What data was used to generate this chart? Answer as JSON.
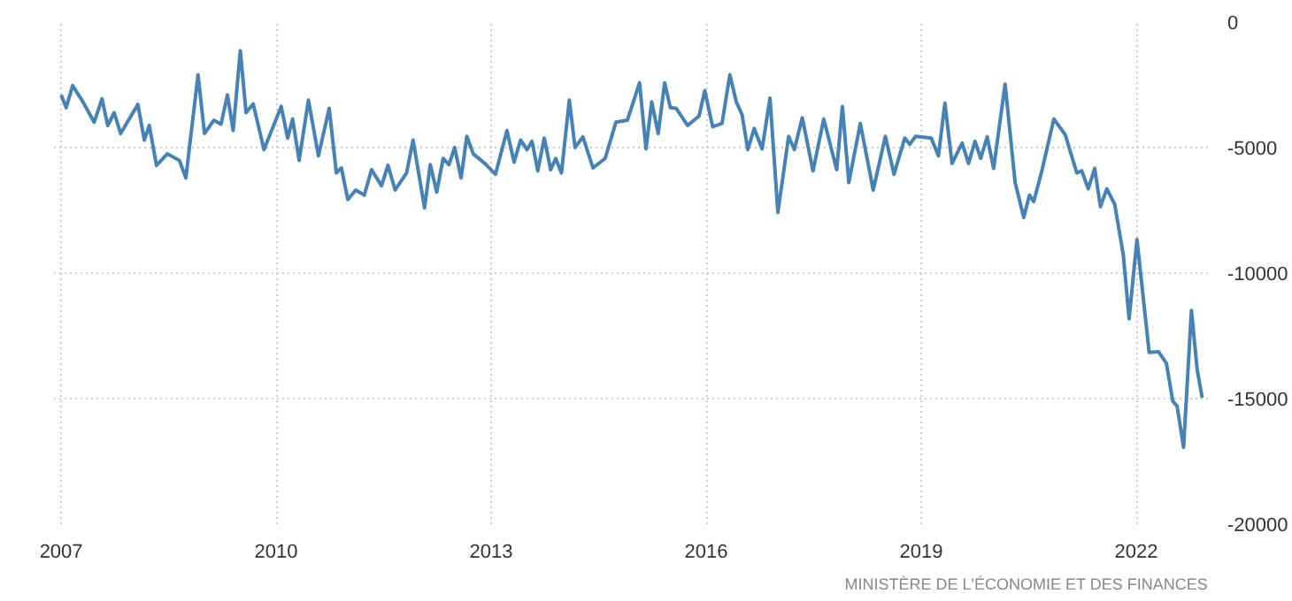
{
  "chart_data": {
    "type": "line",
    "x": [
      2007.0,
      2007.07,
      2007.16,
      2007.29,
      2007.46,
      2007.57,
      2007.65,
      2007.74,
      2007.83,
      2008.07,
      2008.16,
      2008.23,
      2008.33,
      2008.48,
      2008.65,
      2008.74,
      2008.91,
      2009.0,
      2009.13,
      2009.23,
      2009.32,
      2009.4,
      2009.5,
      2009.58,
      2009.68,
      2009.83,
      2010.07,
      2010.16,
      2010.23,
      2010.32,
      2010.45,
      2010.59,
      2010.74,
      2010.84,
      2010.91,
      2011.0,
      2011.11,
      2011.23,
      2011.33,
      2011.47,
      2011.56,
      2011.66,
      2011.82,
      2011.91,
      2012.07,
      2012.15,
      2012.24,
      2012.33,
      2012.41,
      2012.49,
      2012.58,
      2012.66,
      2012.75,
      2012.91,
      2013.06,
      2013.22,
      2013.32,
      2013.41,
      2013.5,
      2013.57,
      2013.65,
      2013.74,
      2013.83,
      2013.9,
      2013.98,
      2014.09,
      2014.17,
      2014.28,
      2014.42,
      2014.59,
      2014.74,
      2014.9,
      2015.07,
      2015.16,
      2015.24,
      2015.33,
      2015.42,
      2015.5,
      2015.58,
      2015.74,
      2015.9,
      2015.98,
      2016.09,
      2016.22,
      2016.33,
      2016.42,
      2016.5,
      2016.58,
      2016.67,
      2016.78,
      2016.89,
      2017.0,
      2017.15,
      2017.23,
      2017.34,
      2017.49,
      2017.64,
      2017.82,
      2017.9,
      2017.99,
      2018.15,
      2018.33,
      2018.5,
      2018.62,
      2018.77,
      2018.84,
      2018.92,
      2019.14,
      2019.24,
      2019.33,
      2019.43,
      2019.57,
      2019.66,
      2019.75,
      2019.83,
      2019.92,
      2020.01,
      2020.17,
      2020.31,
      2020.43,
      2020.51,
      2020.57,
      2020.68,
      2020.85,
      2021.01,
      2021.17,
      2021.24,
      2021.33,
      2021.42,
      2021.5,
      2021.59,
      2021.7,
      2021.82,
      2021.9,
      2022.01,
      2022.18,
      2022.31,
      2022.42,
      2022.51,
      2022.57,
      2022.66,
      2022.77,
      2022.85,
      2022.92
    ],
    "series": [
      {
        "color": "#4682b4",
        "values": [
          -2900,
          -3410,
          -2530,
          -3110,
          -3990,
          -3060,
          -4120,
          -3610,
          -4440,
          -3280,
          -4700,
          -4120,
          -5710,
          -5250,
          -5510,
          -6210,
          -2100,
          -4440,
          -3910,
          -4070,
          -2900,
          -4320,
          -1140,
          -3610,
          -3260,
          -5080,
          -3360,
          -4620,
          -3860,
          -5510,
          -3110,
          -5330,
          -3430,
          -6010,
          -5810,
          -7070,
          -6690,
          -6890,
          -5880,
          -6520,
          -5710,
          -6690,
          -6010,
          -4700,
          -7400,
          -5680,
          -6770,
          -5430,
          -5680,
          -5000,
          -6210,
          -4550,
          -5250,
          -5630,
          -6060,
          -4320,
          -5580,
          -4700,
          -5080,
          -4750,
          -5930,
          -4620,
          -5880,
          -5430,
          -6010,
          -3110,
          -5000,
          -4570,
          -5810,
          -5430,
          -3990,
          -3910,
          -2420,
          -5050,
          -3180,
          -4440,
          -2420,
          -3410,
          -3430,
          -4120,
          -3740,
          -2730,
          -4170,
          -4040,
          -2100,
          -3180,
          -3690,
          -5080,
          -4240,
          -5050,
          -3030,
          -7580,
          -4550,
          -5080,
          -3810,
          -5930,
          -3860,
          -5880,
          -3360,
          -6390,
          -4040,
          -6690,
          -4550,
          -6060,
          -4620,
          -4870,
          -4550,
          -4620,
          -5330,
          -3230,
          -5630,
          -4820,
          -5630,
          -4750,
          -5430,
          -4570,
          -5830,
          -2470,
          -6390,
          -7780,
          -6890,
          -7150,
          -5960,
          -3860,
          -4490,
          -6010,
          -5930,
          -6640,
          -5830,
          -7350,
          -6640,
          -7270,
          -9290,
          -11820,
          -8660,
          -13160,
          -13130,
          -13590,
          -15100,
          -15300,
          -16940,
          -11490,
          -13840,
          -14970
        ]
      }
    ],
    "xlim": [
      2006.9,
      2023.0
    ],
    "xticks": [
      2007,
      2010,
      2013,
      2016,
      2019,
      2022
    ],
    "ylim": [
      -20000,
      0
    ],
    "yticks": [
      -20000,
      -15000,
      -10000,
      -5000,
      0
    ],
    "grid": true,
    "annotations": [
      "MINISTÈRE DE L'ÉCONOMIE ET DES FINANCES"
    ]
  }
}
